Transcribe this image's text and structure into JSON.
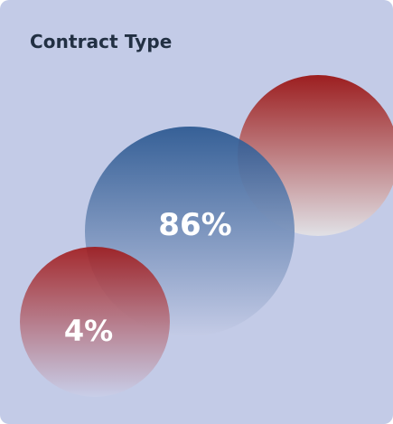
{
  "card": {
    "title": "Contract Type"
  },
  "chart_data": {
    "type": "bubble",
    "title": "Contract Type",
    "values": [
      {
        "value": 86,
        "label": "86%",
        "color": "#2a5790"
      },
      {
        "value": 4,
        "label": "4%",
        "color": "#a01a1a"
      },
      {
        "value": 10,
        "label": "",
        "color": "#9a1b1b"
      }
    ]
  },
  "colors": {
    "background": "#c3cbe7",
    "blue": "#2a5790",
    "red": "#a01a1a",
    "title": "#223043"
  }
}
